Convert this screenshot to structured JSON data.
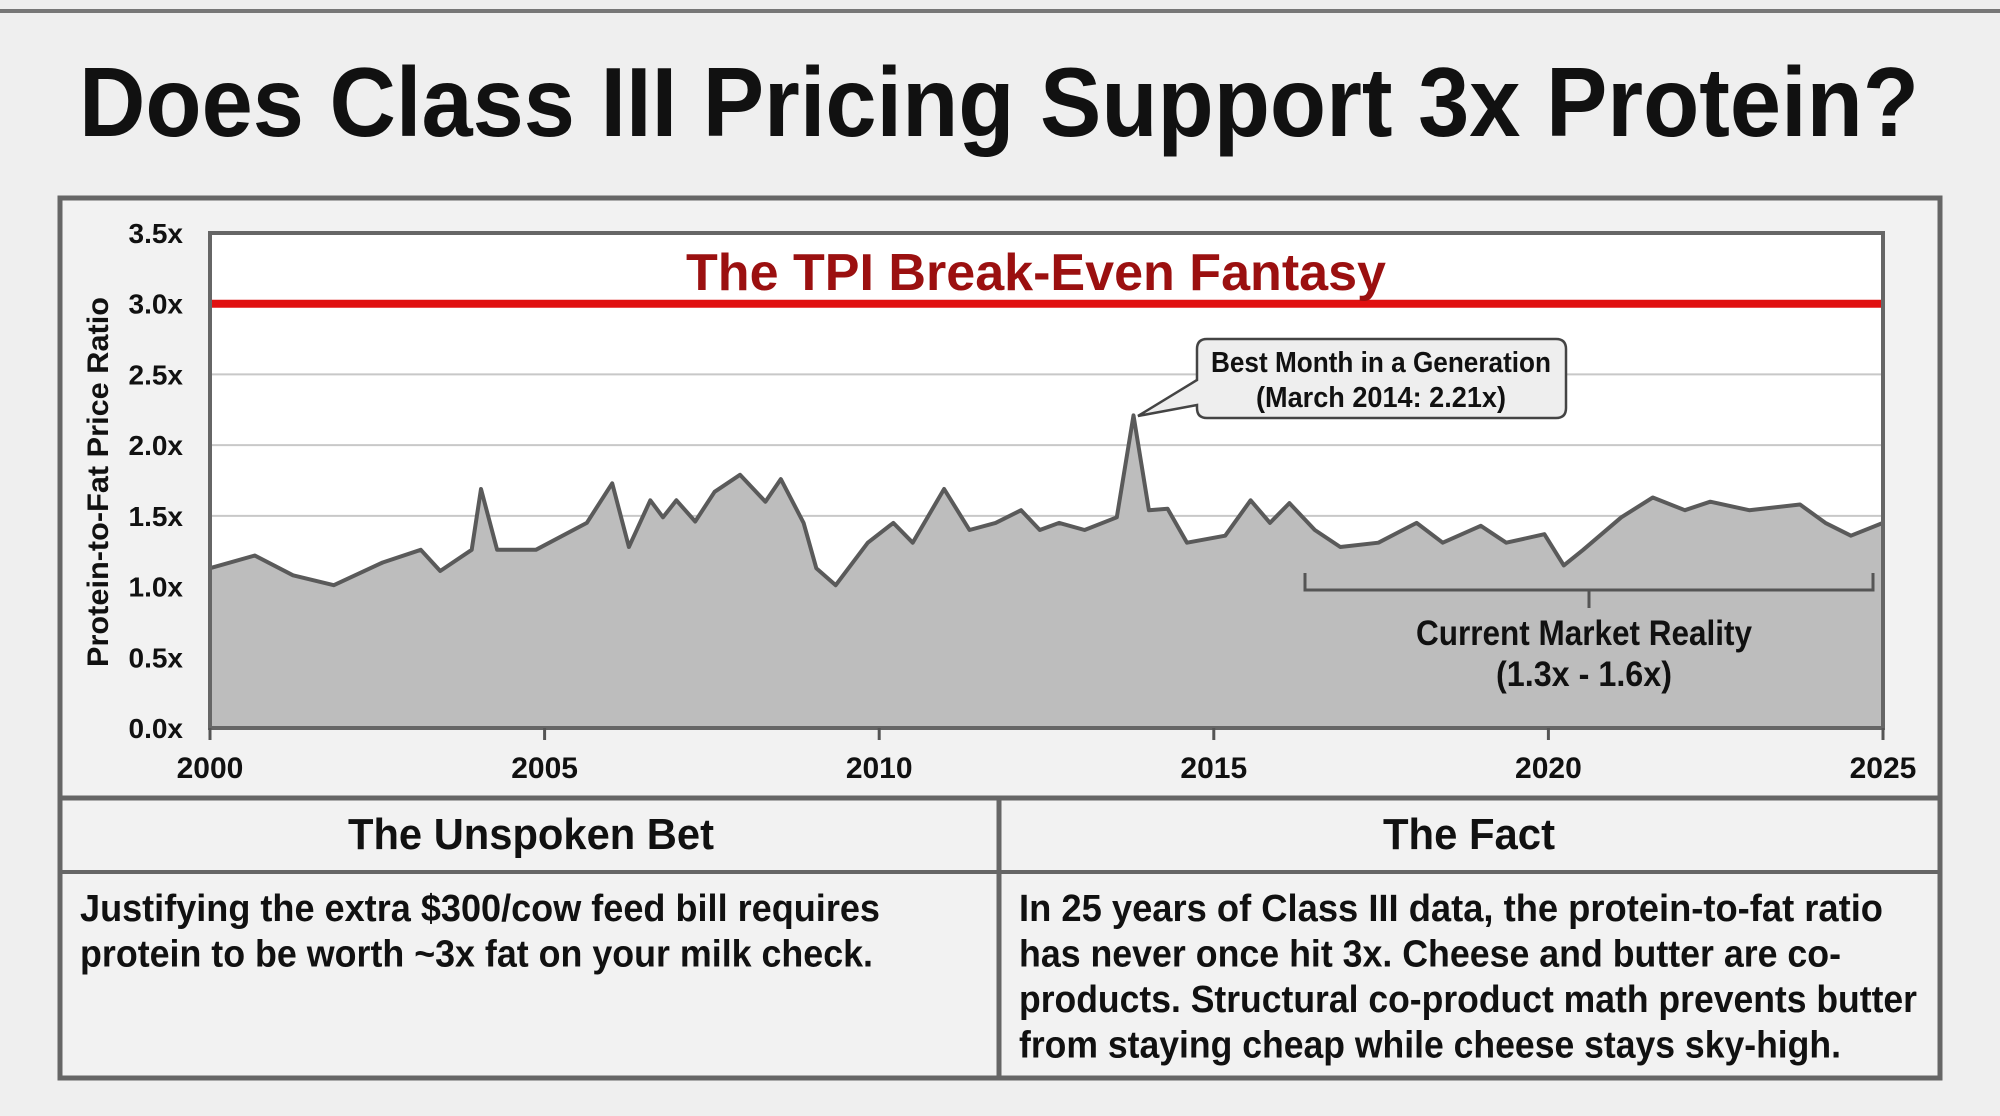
{
  "title": "Does Class III Pricing Support 3x Protein?",
  "chart_data": {
    "type": "area",
    "title": "The TPI Break-Even Fantasy",
    "xlabel": "",
    "ylabel": "Protein-to-Fat Price Ratio",
    "xlim": [
      2000,
      2025
    ],
    "ylim": [
      0,
      3.5
    ],
    "grid": true,
    "x_ticks": [
      "2000",
      "2005",
      "2010",
      "2015",
      "2020",
      "2025"
    ],
    "x_tick_values": [
      2000,
      2005,
      2010,
      2015,
      2020,
      2025
    ],
    "y_ticks": [
      "0.0x",
      "0.5x",
      "1.0x",
      "1.5x",
      "2.0x",
      "2.5x",
      "3.0x",
      "3.5x"
    ],
    "y_tick_values": [
      0,
      0.5,
      1.0,
      1.5,
      2.0,
      2.5,
      3.0,
      3.5
    ],
    "reference_line": {
      "value": 3.0,
      "color": "#e01010"
    },
    "series": [
      {
        "name": "Protein-to-Fat Price Ratio",
        "x": [
          2000.0,
          2000.67,
          2001.24,
          2001.85,
          2002.58,
          2003.15,
          2003.44,
          2003.91,
          2004.05,
          2004.29,
          2004.87,
          2005.63,
          2006.01,
          2006.26,
          2006.58,
          2006.77,
          2006.97,
          2007.25,
          2007.54,
          2007.92,
          2008.3,
          2008.53,
          2008.87,
          2009.06,
          2009.35,
          2009.83,
          2010.21,
          2010.5,
          2010.97,
          2011.35,
          2011.74,
          2012.12,
          2012.4,
          2012.69,
          2013.07,
          2013.55,
          2013.8,
          2014.03,
          2014.31,
          2014.6,
          2015.17,
          2015.55,
          2015.84,
          2016.13,
          2016.51,
          2016.89,
          2017.46,
          2018.03,
          2018.42,
          2018.99,
          2019.37,
          2019.94,
          2020.23,
          2020.52,
          2021.09,
          2021.56,
          2022.04,
          2022.42,
          2023.0,
          2023.76,
          2024.14,
          2024.52,
          2025.0
        ],
        "y": [
          1.13,
          1.22,
          1.08,
          1.01,
          1.17,
          1.26,
          1.11,
          1.26,
          1.69,
          1.26,
          1.26,
          1.45,
          1.73,
          1.28,
          1.61,
          1.49,
          1.61,
          1.46,
          1.67,
          1.79,
          1.6,
          1.76,
          1.45,
          1.13,
          1.01,
          1.31,
          1.45,
          1.31,
          1.69,
          1.4,
          1.45,
          1.54,
          1.4,
          1.45,
          1.4,
          1.49,
          2.21,
          1.54,
          1.55,
          1.31,
          1.36,
          1.61,
          1.45,
          1.59,
          1.4,
          1.28,
          1.31,
          1.45,
          1.31,
          1.43,
          1.31,
          1.37,
          1.15,
          1.26,
          1.49,
          1.63,
          1.54,
          1.6,
          1.54,
          1.58,
          1.45,
          1.36,
          1.45
        ],
        "fill": "#bdbdbd",
        "stroke": "#5a5a5a"
      }
    ],
    "annotations": [
      {
        "lines": [
          "Best Month in a Generation",
          "(March 2014: 2.21x)"
        ],
        "x": 2013.8,
        "y": 2.21
      },
      {
        "lines": [
          "Current Market Reality",
          "(1.3x - 1.6x)"
        ],
        "x_range": [
          2016.5,
          2025
        ],
        "y_range": [
          1.3,
          1.6
        ]
      }
    ]
  },
  "table": {
    "left": {
      "header": "The Unspoken Bet",
      "lines": [
        "Justifying the extra $300/cow feed bill requires",
        "protein to be worth ~3x fat on your milk check."
      ]
    },
    "right": {
      "header": "The Fact",
      "lines": [
        "In 25 years of Class III data, the protein-to-fat ratio",
        "has never once hit 3x. Cheese and butter are co-",
        "products. Structural co-product math prevents butter",
        "from staying cheap while cheese stays sky-high."
      ]
    }
  }
}
